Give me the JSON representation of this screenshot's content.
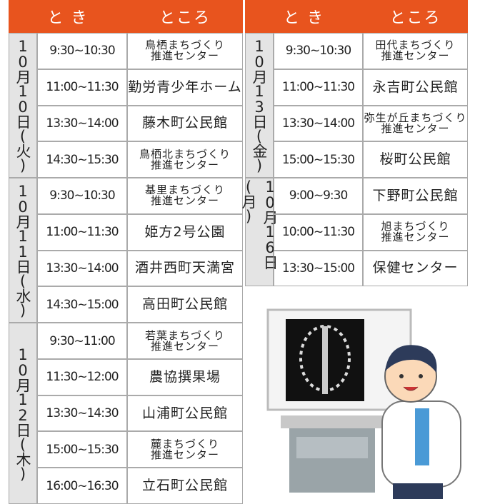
{
  "left_table": {
    "header": {
      "when": "と き",
      "where": "ところ"
    },
    "groups": [
      {
        "date": "10月10日(火)",
        "rows": [
          {
            "time": "9:30~10:30",
            "place": [
              "鳥栖まちづくり",
              "推進センター"
            ]
          },
          {
            "time": "11:00~11:30",
            "place": [
              "勤労青少年ホーム"
            ]
          },
          {
            "time": "13:30~14:00",
            "place": [
              "藤木町公民館"
            ]
          },
          {
            "time": "14:30~15:30",
            "place": [
              "鳥栖北まちづくり",
              "推進センター"
            ]
          }
        ]
      },
      {
        "date": "10月11日(水)",
        "rows": [
          {
            "time": "9:30~10:30",
            "place": [
              "基里まちづくり",
              "推進センター"
            ]
          },
          {
            "time": "11:00~11:30",
            "place": [
              "姫方2号公園"
            ]
          },
          {
            "time": "13:30~14:00",
            "place": [
              "酒井西町天満宮"
            ]
          },
          {
            "time": "14:30~15:00",
            "place": [
              "高田町公民館"
            ]
          }
        ]
      },
      {
        "date": "10月12日(木)",
        "rows": [
          {
            "time": "9:30~11:00",
            "place": [
              "若葉まちづくり",
              "推進センター"
            ]
          },
          {
            "time": "11:30~12:00",
            "place": [
              "農協撰果場"
            ]
          },
          {
            "time": "13:30~14:30",
            "place": [
              "山浦町公民館"
            ]
          },
          {
            "time": "15:00~15:30",
            "place": [
              "麓まちづくり",
              "推進センター"
            ]
          },
          {
            "time": "16:00~16:30",
            "place": [
              "立石町公民館"
            ]
          }
        ]
      }
    ]
  },
  "right_table": {
    "header": {
      "when": "と き",
      "where": "ところ"
    },
    "groups": [
      {
        "date": "10月13日(金)",
        "rows": [
          {
            "time": "9:30~10:30",
            "place": [
              "田代まちづくり",
              "推進センター"
            ]
          },
          {
            "time": "11:00~11:30",
            "place": [
              "永吉町公民館"
            ]
          },
          {
            "time": "13:30~14:00",
            "place": [
              "弥生が丘まちづくり",
              "推進センター"
            ]
          },
          {
            "time": "15:00~15:30",
            "place": [
              "桜町公民館"
            ]
          }
        ]
      },
      {
        "date": "10月16日(月)",
        "rows": [
          {
            "time": "9:00~9:30",
            "place": [
              "下野町公民館"
            ]
          },
          {
            "time": "10:00~11:30",
            "place": [
              "旭まちづくり",
              "推進センター"
            ]
          },
          {
            "time": "13:30~15:00",
            "place": [
              "保健センター"
            ]
          }
        ]
      }
    ]
  }
}
